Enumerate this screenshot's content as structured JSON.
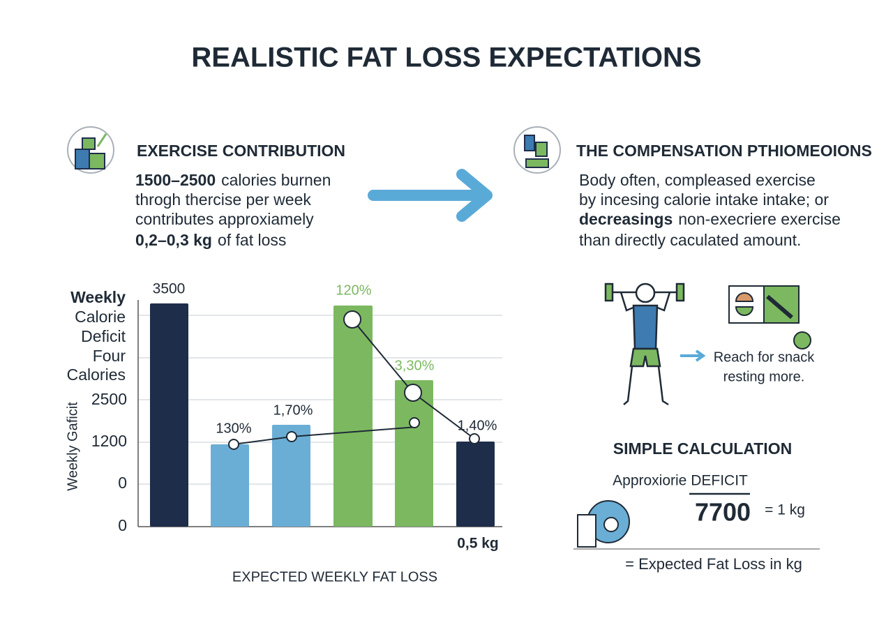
{
  "title": "REALISTIC FAT LOSS EXPECTATIONS",
  "exercise": {
    "heading": "EXERCISE CONTRIBUTION",
    "line1": {
      "bold": "1500–2500",
      "text": "calories burnen"
    },
    "line2": "throgh thercise per week",
    "line3": "contributes approxiamely",
    "line4": {
      "bold": "0,2–0,3 kg",
      "text": "of fat loss"
    }
  },
  "compensation": {
    "heading": "THE COMPENSATION PTHIOMEOIONS",
    "line1": "Body often, compleased exercise",
    "line2": "by incesing calorie intake intake; or",
    "line3": {
      "bold": "decreasings",
      "text": "non-execriere exercise"
    },
    "line4": "than directly caculated amount."
  },
  "chart": {
    "y_label": [
      "Weekly",
      "Calorie",
      "Deficit",
      "Four",
      "Calories"
    ],
    "y_label_rotated": "Weekly Gaficit",
    "ticks": [
      "3500",
      "2500",
      "1200",
      "0",
      "0"
    ],
    "bar_labels": [
      "130%",
      "1,70%",
      "120%",
      "3,30%",
      "1,40%"
    ],
    "bottom_label": "0,5 kg",
    "x_label": "EXPECTED WEEKLY FAT LOSS"
  },
  "snack": [
    "Reach for snack",
    "resting more."
  ],
  "calculation": {
    "heading": "SIMPLE CALCULATION",
    "label": "Approxiorie DEFICIT",
    "number": "7700",
    "equals": "= 1 kg",
    "result": "= Expected Fat Loss in kg"
  }
}
